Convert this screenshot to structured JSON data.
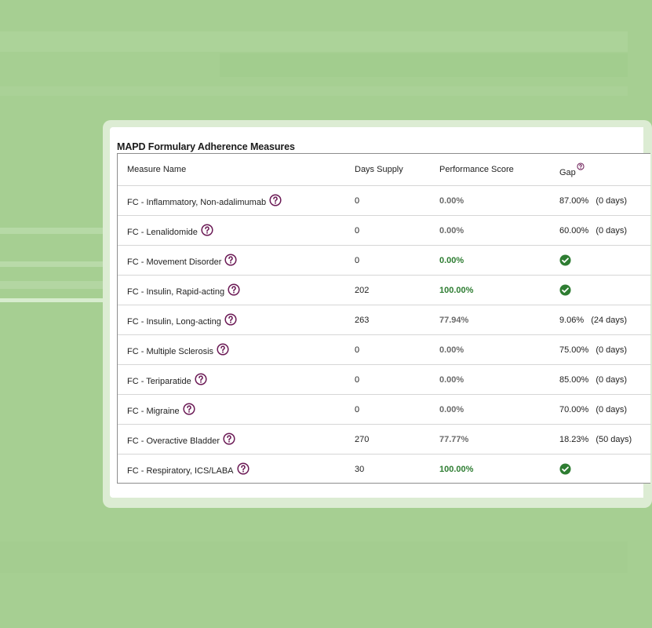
{
  "title": "MAPD Formulary Adherence Measures",
  "columns": {
    "measure": "Measure Name",
    "days_supply": "Days Supply",
    "performance": "Performance Score",
    "gap": "Gap"
  },
  "colors": {
    "background": "#a6cf92",
    "help_icon": "#6b1a55",
    "score_good": "#2e7d32",
    "check_icon": "#2e7d32"
  },
  "rows": [
    {
      "name": "FC - Inflammatory, Non-adalimumab",
      "days_supply": "0",
      "score": "0.00%",
      "score_good": false,
      "gap_pct": "87.00%",
      "gap_days": "(0 days)",
      "gap_met": false
    },
    {
      "name": "FC - Lenalidomide",
      "days_supply": "0",
      "score": "0.00%",
      "score_good": false,
      "gap_pct": "60.00%",
      "gap_days": "(0 days)",
      "gap_met": false
    },
    {
      "name": "FC - Movement Disorder",
      "days_supply": "0",
      "score": "0.00%",
      "score_good": true,
      "gap_pct": "",
      "gap_days": "",
      "gap_met": true
    },
    {
      "name": "FC - Insulin, Rapid-acting",
      "days_supply": "202",
      "score": "100.00%",
      "score_good": true,
      "gap_pct": "",
      "gap_days": "",
      "gap_met": true
    },
    {
      "name": "FC - Insulin, Long-acting",
      "days_supply": "263",
      "score": "77.94%",
      "score_good": false,
      "gap_pct": "9.06%",
      "gap_days": "(24 days)",
      "gap_met": false
    },
    {
      "name": "FC - Multiple Sclerosis",
      "days_supply": "0",
      "score": "0.00%",
      "score_good": false,
      "gap_pct": "75.00%",
      "gap_days": "(0 days)",
      "gap_met": false
    },
    {
      "name": "FC - Teriparatide",
      "days_supply": "0",
      "score": "0.00%",
      "score_good": false,
      "gap_pct": "85.00%",
      "gap_days": "(0 days)",
      "gap_met": false
    },
    {
      "name": "FC - Migraine",
      "days_supply": "0",
      "score": "0.00%",
      "score_good": false,
      "gap_pct": "70.00%",
      "gap_days": "(0 days)",
      "gap_met": false
    },
    {
      "name": "FC - Overactive Bladder",
      "days_supply": "270",
      "score": "77.77%",
      "score_good": false,
      "gap_pct": "18.23%",
      "gap_days": "(50 days)",
      "gap_met": false
    },
    {
      "name": "FC - Respiratory, ICS/LABA",
      "days_supply": "30",
      "score": "100.00%",
      "score_good": true,
      "gap_pct": "",
      "gap_days": "",
      "gap_met": true
    }
  ]
}
